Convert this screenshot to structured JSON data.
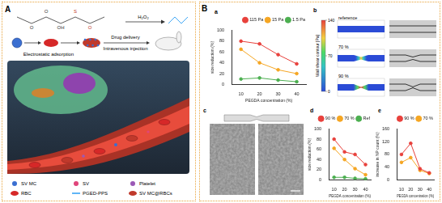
{
  "figure": {
    "A": {
      "label": "A",
      "structure_atoms": [
        "O",
        "O",
        "OH",
        "S",
        "O"
      ],
      "reagent": "H₂O₂",
      "steps": [
        "Electrostatic adsorption",
        "Drug delivery",
        "Intravenous injection"
      ],
      "legend": [
        {
          "name": "SV MC",
          "color": "#3b6fd1"
        },
        {
          "name": "SV",
          "color": "#e0457b"
        },
        {
          "name": "Platelet",
          "color": "#9b59b6"
        },
        {
          "name": "RBC",
          "color": "#d62828"
        },
        {
          "name": "PGED-PPS",
          "color": "#2a9df4"
        },
        {
          "name": "SV MC@RBCs",
          "color": "#c0392b"
        }
      ]
    },
    "B": {
      "label": "B",
      "b": {
        "panel": "b",
        "rows": [
          "reference",
          "70 %",
          "90 %"
        ],
        "colorbar": {
          "title": "Wall shear contour [Pa]",
          "range": [
            0,
            140
          ],
          "ticks": [
            0,
            70,
            140
          ]
        }
      },
      "c": {
        "panel": "c"
      }
    }
  },
  "chart_data": [
    {
      "panel": "a",
      "type": "line",
      "categories": [
        "10",
        "20",
        "30",
        "40"
      ],
      "x_label": "PEGDA concentration (%)",
      "y_label": "size reduction (%)",
      "series": [
        {
          "name": "115 Pa",
          "color": "#e8413c",
          "values": [
            80,
            75,
            55,
            38
          ]
        },
        {
          "name": "15 Pa",
          "color": "#f5a623",
          "values": [
            65,
            40,
            27,
            20
          ]
        },
        {
          "name": "1.5 Pa",
          "color": "#4caf50",
          "values": [
            10,
            12,
            8,
            5
          ]
        }
      ],
      "ylim": [
        0,
        100
      ],
      "yticks": [
        0,
        20,
        40,
        60,
        80,
        100
      ],
      "grid": false,
      "legend": "top-right",
      "marker": "circle"
    },
    {
      "panel": "d",
      "type": "line",
      "categories": [
        "10",
        "20",
        "30",
        "40"
      ],
      "x_label": "PEGDA concentration (%)",
      "y_label": "size reduction (%)",
      "series": [
        {
          "name": "90 %",
          "color": "#e8413c",
          "values": [
            80,
            55,
            50,
            30
          ]
        },
        {
          "name": "70 %",
          "color": "#f5a623",
          "values": [
            62,
            40,
            22,
            10
          ]
        },
        {
          "name": "Ref",
          "color": "#4caf50",
          "values": [
            5,
            5,
            3,
            2
          ]
        }
      ],
      "ylim": [
        0,
        100
      ],
      "yticks": [
        0,
        20,
        40,
        60,
        80,
        100
      ],
      "grid": false,
      "legend": "top-right",
      "marker": "circle"
    },
    {
      "panel": "e",
      "type": "line",
      "categories": [
        "10",
        "20",
        "30",
        "40"
      ],
      "x_label": "PEGDA concentration (%)",
      "y_label": "increase in NP count (%)",
      "series": [
        {
          "name": "90 %",
          "color": "#e8413c",
          "values": [
            80,
            115,
            35,
            22
          ]
        },
        {
          "name": "70 %",
          "color": "#f5a623",
          "values": [
            55,
            70,
            30,
            20
          ]
        }
      ],
      "ylim": [
        0,
        160
      ],
      "yticks": [
        0,
        40,
        80,
        120,
        160
      ],
      "grid": false,
      "legend": "top-right",
      "marker": "circle"
    }
  ]
}
